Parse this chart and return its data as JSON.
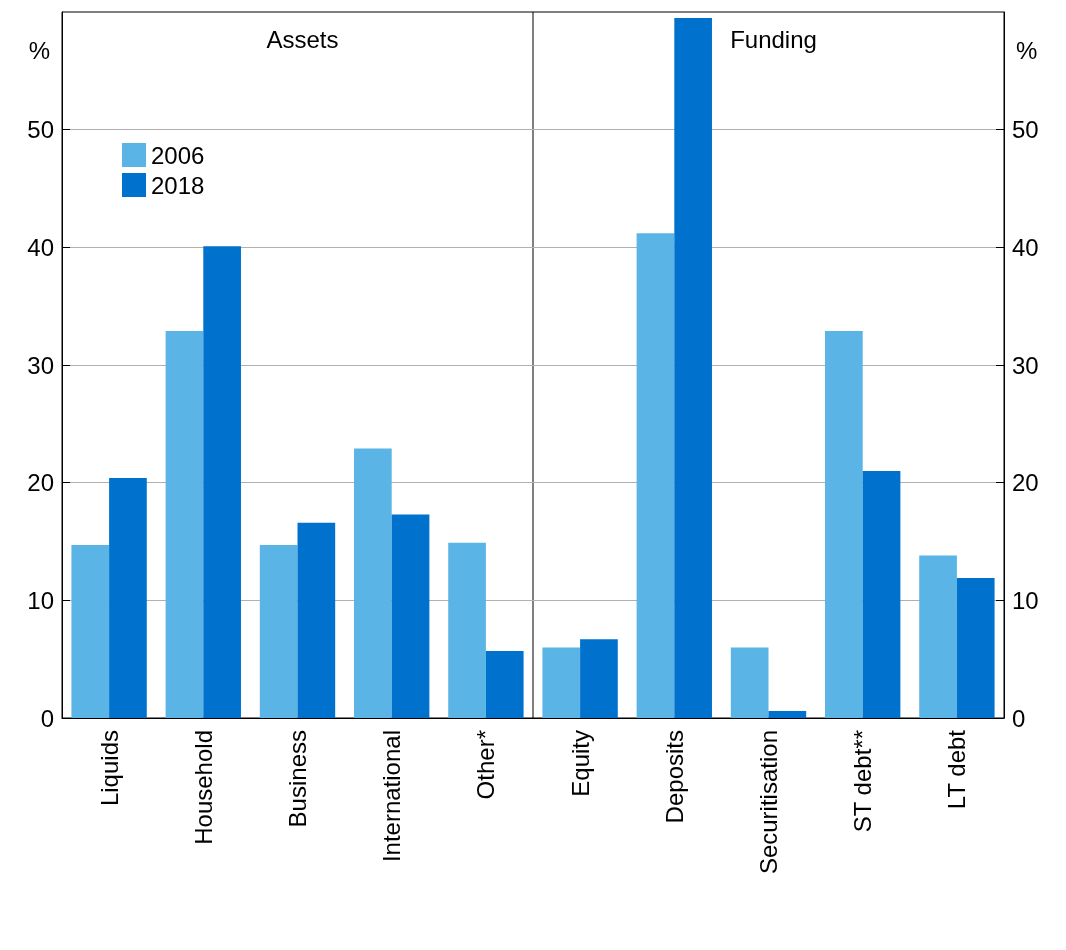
{
  "chart_data": [
    {
      "type": "bar",
      "title": "Assets",
      "ylabel": "%",
      "categories": [
        "Liquids",
        "Household",
        "Business",
        "International",
        "Other*"
      ],
      "ylim": [
        0,
        60
      ],
      "yticks": [
        0,
        10,
        20,
        30,
        40,
        50
      ],
      "grid": "y",
      "legend": "top left",
      "series": [
        {
          "name": "2006",
          "color": "#5ab4e5",
          "values": [
            14.7,
            32.9,
            14.7,
            22.9,
            14.9
          ]
        },
        {
          "name": "2018",
          "color": "#0072ce",
          "values": [
            20.4,
            40.1,
            16.6,
            17.3,
            5.7
          ]
        }
      ]
    },
    {
      "type": "bar",
      "title": "Funding",
      "ylabel": "%",
      "categories": [
        "Equity",
        "Deposits",
        "Securitisation",
        "ST debt**",
        "LT debt"
      ],
      "ylim": [
        0,
        60
      ],
      "yticks": [
        0,
        10,
        20,
        30,
        40,
        50
      ],
      "grid": "y",
      "series": [
        {
          "color": "#5ab4e5",
          "values": [
            6.0,
            41.2,
            6.0,
            32.9,
            13.8
          ]
        },
        {
          "color": "#0072ce",
          "values": [
            6.7,
            59.5,
            0.6,
            21.0,
            11.9
          ]
        }
      ]
    }
  ]
}
